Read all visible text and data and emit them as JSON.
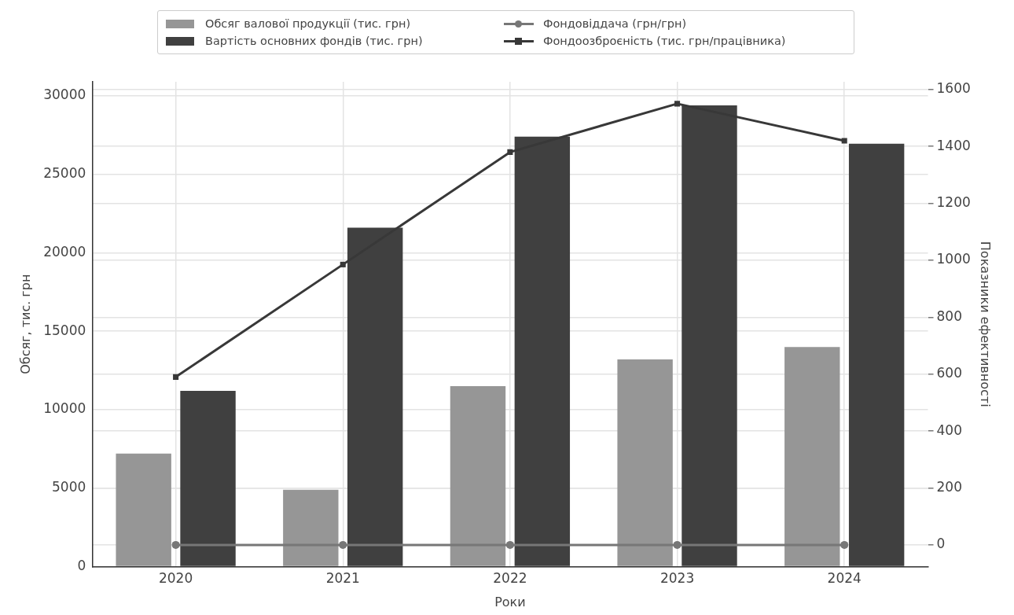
{
  "chart_data": {
    "type": "bar",
    "categories": [
      "2020",
      "2021",
      "2022",
      "2023",
      "2024"
    ],
    "series": [
      {
        "name": "Обсяг валової продукції (тис. грн)",
        "color": "#969696",
        "values": [
          7200,
          4900,
          11500,
          13200,
          14000
        ]
      },
      {
        "name": "Вартість основних фондів (тис. грн)",
        "color": "#404040",
        "values": [
          11200,
          21600,
          27400,
          29400,
          26950
        ]
      },
      {
        "name": "Фондовіддача (грн/грн)",
        "type": "line",
        "axis": "y2",
        "color": "#777777",
        "marker": "circle",
        "values": [
          0,
          0,
          0,
          0,
          0
        ]
      },
      {
        "name": "Фондоозброєність (тис. грн/працівника)",
        "type": "line",
        "axis": "y2",
        "color": "#383838",
        "marker": "square",
        "values": [
          590,
          985,
          1380,
          1550,
          1420
        ]
      }
    ],
    "xlabel": "Роки",
    "ylabel": "Обсяг, тис. грн",
    "y2label": "Показники ефективності",
    "ylim": [
      0,
      30900
    ],
    "yticks": [
      0,
      5000,
      10000,
      15000,
      20000,
      25000,
      30000
    ],
    "y2lim": [
      -76,
      1627
    ],
    "y2ticks": [
      0,
      200,
      400,
      600,
      800,
      1000,
      1200,
      1400,
      1600
    ],
    "grid": true,
    "legend": "top",
    "line_style": "solid"
  }
}
